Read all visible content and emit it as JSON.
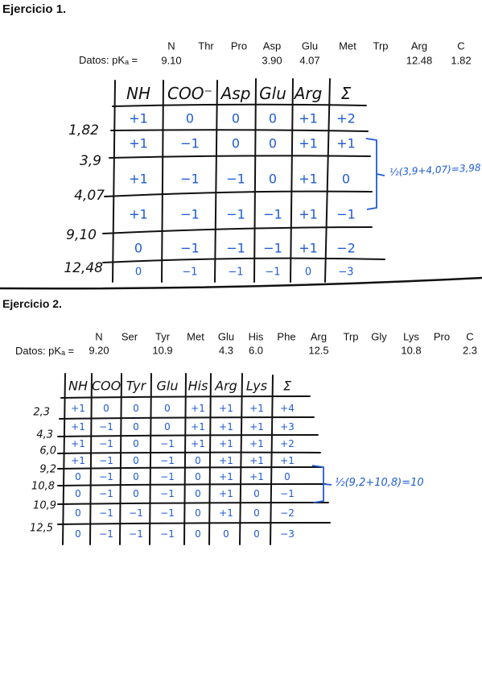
{
  "ex1": {
    "title": "Ejercicio 1.",
    "datos_label": "Datos: pKₐ =",
    "aa_headers": [
      "N",
      "Thr",
      "Pro",
      "Asp",
      "Glu",
      "Met",
      "Trp",
      "Arg",
      "C"
    ],
    "pka_values": [
      "9.10",
      "",
      "",
      "3.90",
      "4.07",
      "",
      "",
      "12.48",
      "1.82"
    ],
    "table_headers": [
      "NH",
      "COO⁻",
      "Asp",
      "Glu",
      "Arg",
      "Σ"
    ],
    "row_labels": [
      "1,82",
      "3,9",
      "4,07",
      "9,10",
      "12,48"
    ],
    "rows": [
      [
        "+1",
        "0",
        "0",
        "0",
        "+1",
        "+2"
      ],
      [
        "+1",
        "−1",
        "0",
        "0",
        "+1",
        "+1"
      ],
      [
        "+1",
        "−1",
        "−1",
        "0",
        "+1",
        "0"
      ],
      [
        "+1",
        "−1",
        "−1",
        "−1",
        "+1",
        "−1"
      ],
      [
        "0",
        "−1",
        "−1",
        "−1",
        "+1",
        "−2"
      ],
      [
        "0",
        "−1",
        "−1",
        "−1",
        "0",
        "−3"
      ]
    ],
    "note": "½(3,9+4,07)=3,98"
  },
  "ex2": {
    "title": "Ejercicio 2.",
    "datos_label": "Datos: pKₐ =",
    "aa_headers": [
      "N",
      "Ser",
      "Tyr",
      "Met",
      "Glu",
      "His",
      "Phe",
      "Arg",
      "Trp",
      "Gly",
      "Lys",
      "Pro",
      "C"
    ],
    "pka_values": [
      "9.20",
      "",
      "10.9",
      "",
      "4.3",
      "6.0",
      "",
      "12.5",
      "",
      "",
      "10.8",
      "",
      "2.3"
    ],
    "table_headers": [
      "NH",
      "COO",
      "Tyr",
      "Glu",
      "His",
      "Arg",
      "Lys",
      "Σ"
    ],
    "row_labels": [
      "2,3",
      "4,3",
      "6,0",
      "9,2",
      "10,8",
      "10,9",
      "12,5"
    ],
    "rows": [
      [
        "+1",
        "0",
        "0",
        "0",
        "+1",
        "+1",
        "+1",
        "+4"
      ],
      [
        "+1",
        "−1",
        "0",
        "0",
        "+1",
        "+1",
        "+1",
        "+3"
      ],
      [
        "+1",
        "−1",
        "0",
        "−1",
        "+1",
        "+1",
        "+1",
        "+2"
      ],
      [
        "+1",
        "−1",
        "0",
        "−1",
        "0",
        "+1",
        "+1",
        "+1"
      ],
      [
        "0",
        "−1",
        "0",
        "−1",
        "0",
        "+1",
        "+1",
        "0"
      ],
      [
        "0",
        "−1",
        "0",
        "−1",
        "0",
        "+1",
        "0",
        "−1"
      ],
      [
        "0",
        "−1",
        "−1",
        "−1",
        "0",
        "+1",
        "0",
        "−2"
      ],
      [
        "0",
        "−1",
        "−1",
        "−1",
        "0",
        "0",
        "0",
        "−3"
      ]
    ],
    "note": "½(9,2+10,8)=10"
  }
}
